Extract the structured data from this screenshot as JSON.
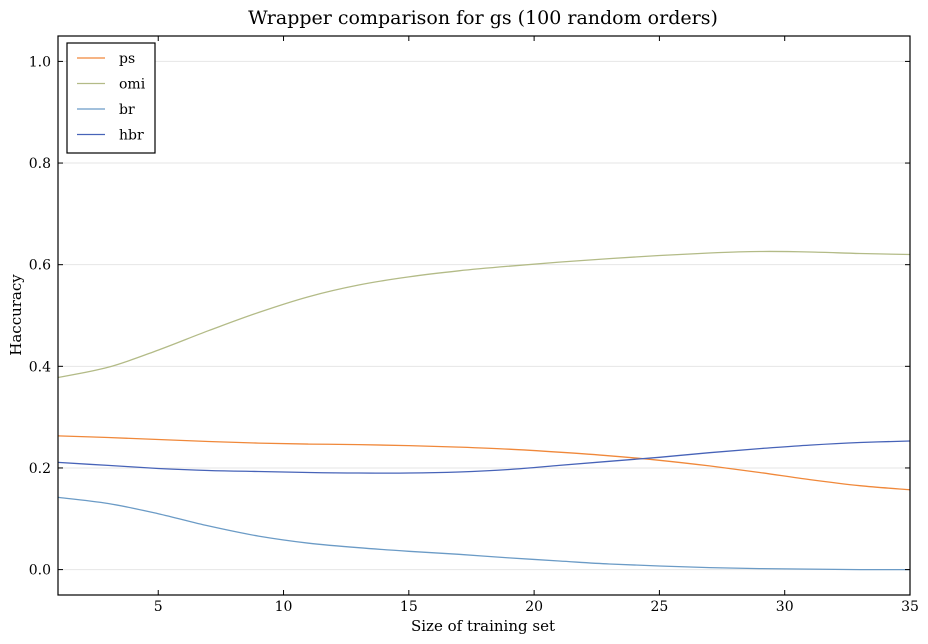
{
  "chart_data": {
    "type": "line",
    "title": "Wrapper comparison for gs (100 random orders)",
    "xlabel": "Size of training set",
    "ylabel": "Haccuracy",
    "xlim": [
      1,
      35
    ],
    "ylim": [
      -0.05,
      1.05
    ],
    "xticks": [
      5,
      10,
      15,
      20,
      25,
      30,
      35
    ],
    "yticks": [
      0.0,
      0.2,
      0.4,
      0.6,
      0.8,
      1.0
    ],
    "ytick_labels": [
      "0.0",
      "0.2",
      "0.4",
      "0.6",
      "0.8",
      "1.0"
    ],
    "grid": "horizontal",
    "legend_position": "top-left",
    "x": [
      1,
      3,
      5,
      7,
      9,
      11,
      13,
      15,
      17,
      19,
      21,
      23,
      25,
      27,
      29,
      31,
      33,
      35
    ],
    "series": [
      {
        "name": "ps",
        "color": "#f0883a",
        "values": [
          0.263,
          0.26,
          0.256,
          0.252,
          0.249,
          0.247,
          0.246,
          0.244,
          0.241,
          0.237,
          0.231,
          0.224,
          0.215,
          0.204,
          0.191,
          0.177,
          0.165,
          0.157
        ]
      },
      {
        "name": "omi",
        "color": "#b3bb87",
        "values": [
          0.378,
          0.398,
          0.432,
          0.47,
          0.506,
          0.537,
          0.56,
          0.576,
          0.588,
          0.597,
          0.605,
          0.612,
          0.618,
          0.623,
          0.626,
          0.625,
          0.622,
          0.62
        ]
      },
      {
        "name": "br",
        "color": "#6b9bc6",
        "values": [
          0.142,
          0.13,
          0.11,
          0.086,
          0.066,
          0.052,
          0.043,
          0.036,
          0.03,
          0.023,
          0.017,
          0.011,
          0.007,
          0.004,
          0.002,
          0.001,
          0.0,
          0.0
        ]
      },
      {
        "name": "hbr",
        "color": "#4763b8",
        "values": [
          0.211,
          0.205,
          0.199,
          0.195,
          0.193,
          0.191,
          0.19,
          0.19,
          0.192,
          0.197,
          0.205,
          0.213,
          0.221,
          0.23,
          0.238,
          0.245,
          0.25,
          0.253
        ]
      }
    ]
  }
}
